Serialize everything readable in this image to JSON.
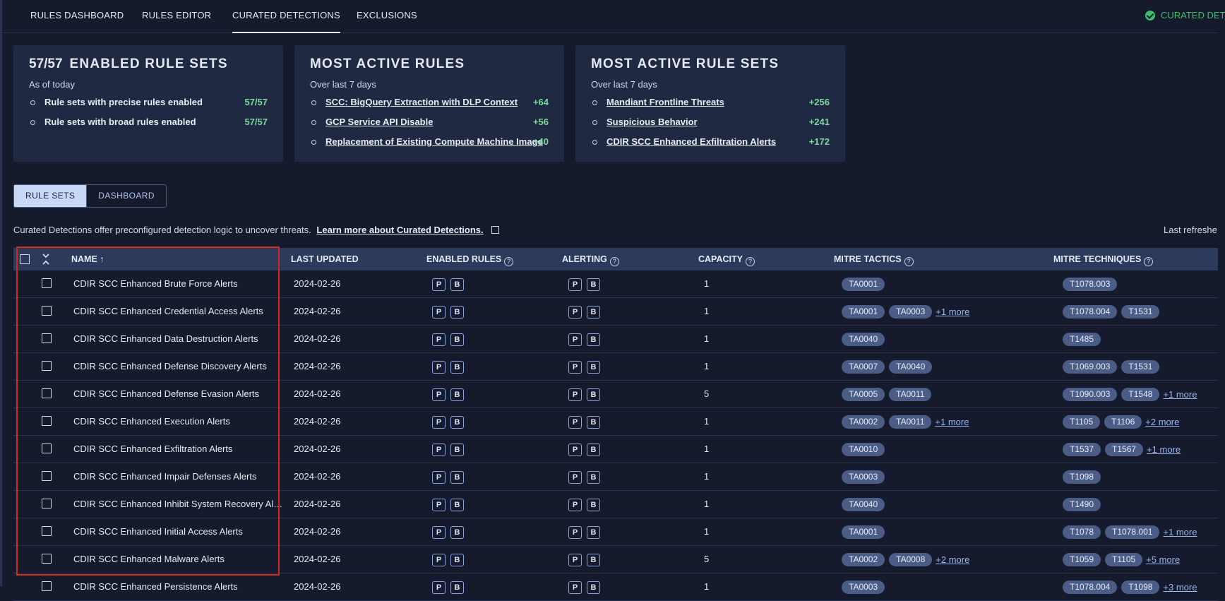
{
  "nav": {
    "tabs": [
      "RULES DASHBOARD",
      "RULES EDITOR",
      "CURATED DETECTIONS",
      "EXCLUSIONS"
    ],
    "active_tab": "CURATED DETECTIONS",
    "status_text": "CURATED DET"
  },
  "cards": {
    "enabled": {
      "count": "57/57",
      "title": "ENABLED RULE SETS",
      "subtitle": "As of today",
      "items": [
        {
          "label": "Rule sets with precise rules enabled",
          "value": "57/57"
        },
        {
          "label": "Rule sets with broad rules enabled",
          "value": "57/57"
        }
      ]
    },
    "active_rules": {
      "title": "MOST ACTIVE RULES",
      "subtitle": "Over last 7 days",
      "items": [
        {
          "label": "SCC: BigQuery Extraction with DLP Context",
          "value": "+64"
        },
        {
          "label": "GCP Service API Disable",
          "value": "+56"
        },
        {
          "label": "Replacement of Existing Compute Machine Image",
          "value": "+40"
        }
      ]
    },
    "active_rule_sets": {
      "title": "MOST ACTIVE RULE SETS",
      "subtitle": "Over last 7 days",
      "items": [
        {
          "label": "Mandiant Frontline Threats",
          "value": "+256"
        },
        {
          "label": "Suspicious Behavior",
          "value": "+241"
        },
        {
          "label": "CDIR SCC Enhanced Exfiltration Alerts",
          "value": "+172"
        }
      ]
    }
  },
  "view_toggle": {
    "rule_sets": "RULE SETS",
    "dashboard": "DASHBOARD",
    "active": "RULE SETS"
  },
  "description": {
    "text": "Curated Detections offer preconfigured detection logic to uncover threats.",
    "link": "Learn more about Curated Detections."
  },
  "last_refreshed": "Last refreshe",
  "table": {
    "columns": {
      "name": "NAME ↑",
      "last_updated": "LAST UPDATED",
      "enabled_rules": "ENABLED RULES",
      "alerting": "ALERTING",
      "capacity": "CAPACITY",
      "mitre_tactics": "MITRE TACTICS",
      "mitre_techniques": "MITRE TECHNIQUES"
    },
    "badges": [
      "P",
      "B"
    ],
    "rows": [
      {
        "name": "CDIR SCC Enhanced Brute Force Alerts",
        "updated": "2024-02-26",
        "capacity": "1",
        "tactics": [
          "TA0001"
        ],
        "tactics_more": "",
        "techniques": [
          "T1078.003"
        ],
        "techniques_more": ""
      },
      {
        "name": "CDIR SCC Enhanced Credential Access Alerts",
        "updated": "2024-02-26",
        "capacity": "1",
        "tactics": [
          "TA0001",
          "TA0003"
        ],
        "tactics_more": "+1 more",
        "techniques": [
          "T1078.004",
          "T1531"
        ],
        "techniques_more": ""
      },
      {
        "name": "CDIR SCC Enhanced Data Destruction Alerts",
        "updated": "2024-02-26",
        "capacity": "1",
        "tactics": [
          "TA0040"
        ],
        "tactics_more": "",
        "techniques": [
          "T1485"
        ],
        "techniques_more": ""
      },
      {
        "name": "CDIR SCC Enhanced Defense Discovery Alerts",
        "updated": "2024-02-26",
        "capacity": "1",
        "tactics": [
          "TA0007",
          "TA0040"
        ],
        "tactics_more": "",
        "techniques": [
          "T1069.003",
          "T1531"
        ],
        "techniques_more": ""
      },
      {
        "name": "CDIR SCC Enhanced Defense Evasion Alerts",
        "updated": "2024-02-26",
        "capacity": "5",
        "tactics": [
          "TA0005",
          "TA0011"
        ],
        "tactics_more": "",
        "techniques": [
          "T1090.003",
          "T1548"
        ],
        "techniques_more": "+1 more"
      },
      {
        "name": "CDIR SCC Enhanced Execution Alerts",
        "updated": "2024-02-26",
        "capacity": "1",
        "tactics": [
          "TA0002",
          "TA0011"
        ],
        "tactics_more": "+1 more",
        "techniques": [
          "T1105",
          "T1106"
        ],
        "techniques_more": "+2 more"
      },
      {
        "name": "CDIR SCC Enhanced Exfiltration Alerts",
        "updated": "2024-02-26",
        "capacity": "1",
        "tactics": [
          "TA0010"
        ],
        "tactics_more": "",
        "techniques": [
          "T1537",
          "T1567"
        ],
        "techniques_more": "+1 more"
      },
      {
        "name": "CDIR SCC Enhanced Impair Defenses Alerts",
        "updated": "2024-02-26",
        "capacity": "1",
        "tactics": [
          "TA0003"
        ],
        "tactics_more": "",
        "techniques": [
          "T1098"
        ],
        "techniques_more": ""
      },
      {
        "name": "CDIR SCC Enhanced Inhibit System Recovery Al…",
        "updated": "2024-02-26",
        "capacity": "1",
        "tactics": [
          "TA0040"
        ],
        "tactics_more": "",
        "techniques": [
          "T1490"
        ],
        "techniques_more": ""
      },
      {
        "name": "CDIR SCC Enhanced Initial Access Alerts",
        "updated": "2024-02-26",
        "capacity": "1",
        "tactics": [
          "TA0001"
        ],
        "tactics_more": "",
        "techniques": [
          "T1078",
          "T1078.001"
        ],
        "techniques_more": "+1 more"
      },
      {
        "name": "CDIR SCC Enhanced Malware Alerts",
        "updated": "2024-02-26",
        "capacity": "5",
        "tactics": [
          "TA0002",
          "TA0008"
        ],
        "tactics_more": "+2 more",
        "techniques": [
          "T1059",
          "T1105"
        ],
        "techniques_more": "+5 more"
      },
      {
        "name": "CDIR SCC Enhanced Persistence Alerts",
        "updated": "2024-02-26",
        "capacity": "1",
        "tactics": [
          "TA0003"
        ],
        "tactics_more": "",
        "techniques": [
          "T1078.004",
          "T1098"
        ],
        "techniques_more": "+3 more"
      }
    ]
  },
  "colors": {
    "background": "#151a2c",
    "card": "#1f2942",
    "header": "#2c3a5c",
    "positive": "#7fd7a0",
    "status": "#3fbe6c",
    "highlight": "#d2291f",
    "chip": "#4b5d86"
  }
}
